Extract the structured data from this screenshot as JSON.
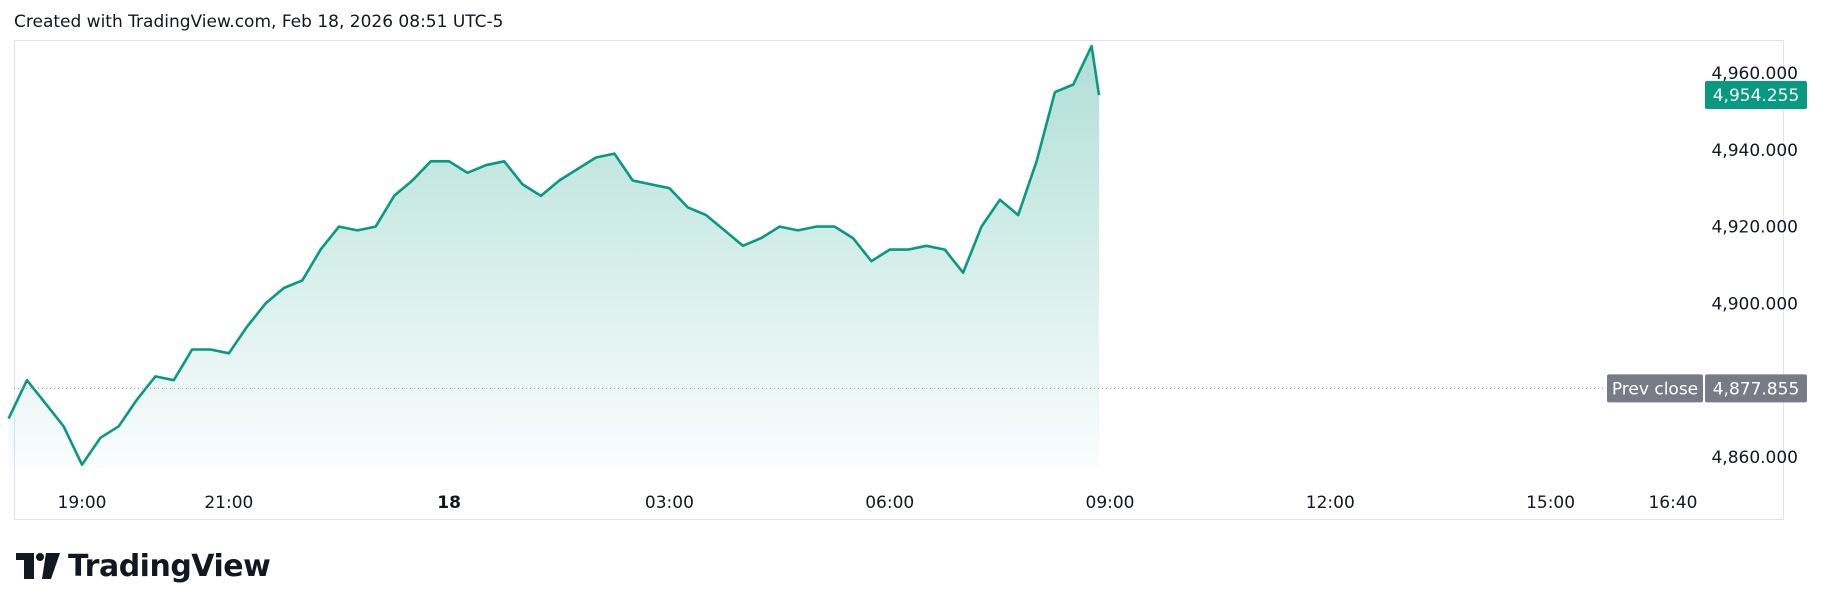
{
  "header": {
    "text": "Created with TradingView.com, Feb 18, 2026 08:51 UTC-5"
  },
  "logo": {
    "text": "TradingView"
  },
  "colors": {
    "line": "#089981",
    "area_top": "#b8e2d8",
    "price_badge": "#089981",
    "prev_close_badge": "#787b86",
    "prev_close_line": "#9598a1"
  },
  "chart_data": {
    "type": "area",
    "x_ticks": [
      "19:00",
      "21:00",
      "18",
      "03:00",
      "06:00",
      "09:00",
      "12:00",
      "15:00",
      "16:40"
    ],
    "y_ticks": [
      "4,960.000",
      "4,940.000",
      "4,920.000",
      "4,900.000",
      "4,860.000"
    ],
    "ylim": [
      4852,
      4970
    ],
    "last_price": "4,954.255",
    "last_price_value": 4954.255,
    "prev_close_label": "Prev close",
    "prev_close": "4,877.855",
    "prev_close_value": 4877.855,
    "x": [
      "18:00",
      "18:15",
      "18:30",
      "18:45",
      "19:00",
      "19:15",
      "19:30",
      "19:45",
      "20:00",
      "20:15",
      "20:30",
      "20:45",
      "21:00",
      "21:15",
      "21:30",
      "21:45",
      "22:00",
      "22:15",
      "22:30",
      "22:45",
      "23:00",
      "23:15",
      "23:30",
      "23:45",
      "00:00",
      "00:15",
      "00:30",
      "00:45",
      "01:00",
      "01:15",
      "01:30",
      "01:45",
      "02:00",
      "02:15",
      "02:30",
      "02:45",
      "03:00",
      "03:15",
      "03:30",
      "03:45",
      "04:00",
      "04:15",
      "04:30",
      "04:45",
      "05:00",
      "05:15",
      "05:30",
      "05:45",
      "06:00",
      "06:15",
      "06:30",
      "06:45",
      "07:00",
      "07:15",
      "07:30",
      "07:45",
      "08:00",
      "08:15",
      "08:30",
      "08:45",
      "08:51"
    ],
    "series": [
      {
        "values": [
          4870,
          4880,
          4874,
          4868,
          4858,
          4865,
          4868,
          4875,
          4881,
          4880,
          4888,
          4888,
          4887,
          4894,
          4900,
          4904,
          4906,
          4914,
          4920,
          4919,
          4920,
          4928,
          4932,
          4937,
          4937,
          4934,
          4936,
          4937,
          4931,
          4928,
          4932,
          4935,
          4938,
          4939,
          4932,
          4931,
          4930,
          4925,
          4923,
          4919,
          4915,
          4917,
          4920,
          4919,
          4920,
          4920,
          4917,
          4911,
          4914,
          4914,
          4915,
          4914,
          4908,
          4920,
          4927,
          4923,
          4937,
          4955,
          4957,
          4967,
          4954.255
        ]
      }
    ]
  }
}
